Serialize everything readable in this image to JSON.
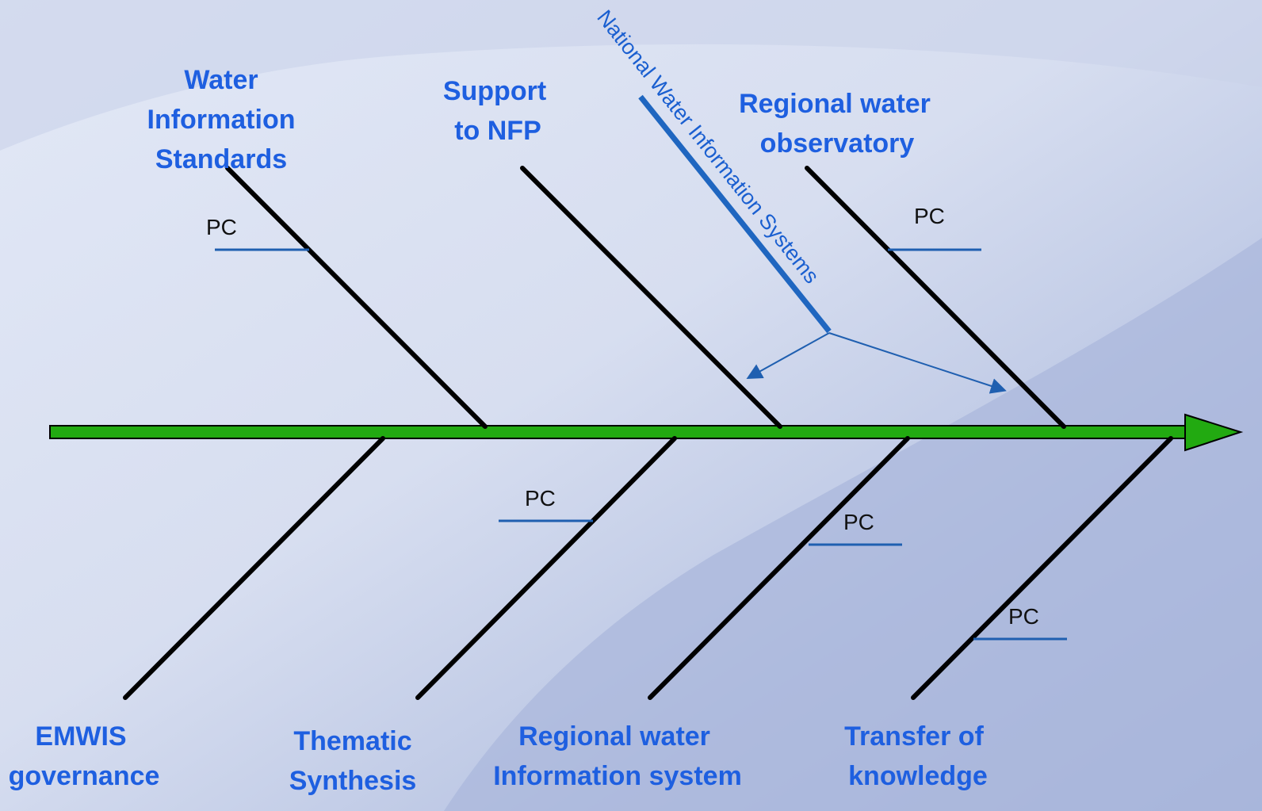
{
  "top_branches": [
    {
      "label": [
        "Water",
        "Information",
        "Standards"
      ],
      "note": "PC"
    },
    {
      "label": [
        "Support",
        "to NFP"
      ]
    },
    {
      "label": [
        "Regional water",
        "observatory"
      ],
      "note": "PC"
    }
  ],
  "national_systems": {
    "label": "National Water Information Systems"
  },
  "bottom_branches": [
    {
      "label": [
        "EMWIS",
        "governance"
      ]
    },
    {
      "label": [
        "Thematic",
        "Synthesis"
      ],
      "note": "PC"
    },
    {
      "label": [
        "Regional water",
        "Information system"
      ],
      "note": "PC"
    },
    {
      "label": [
        "Transfer of",
        "knowledge"
      ],
      "note": "PC"
    }
  ]
}
